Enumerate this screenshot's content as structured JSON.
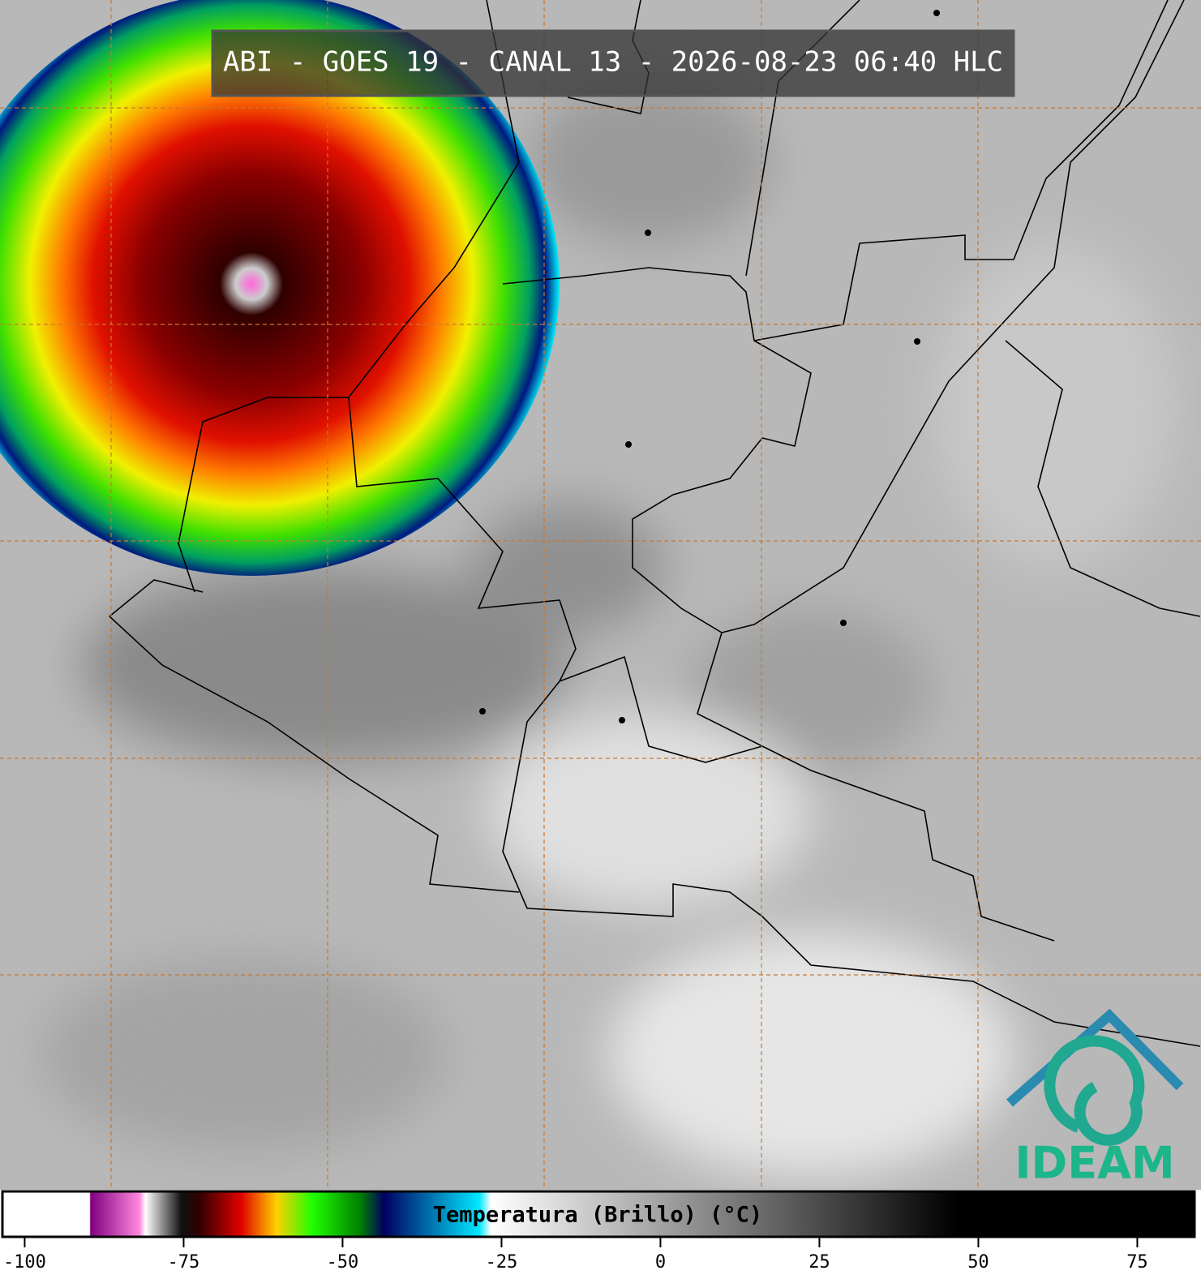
{
  "title": "ABI - GOES 19 - CANAL 13 - 2026-08-23 06:40 HLC",
  "colorbar": {
    "label": "Temperatura (Brillo) (°C)",
    "xlim": [
      -103.5,
      84
    ],
    "xticks": [
      -100,
      -75,
      -50,
      -25,
      0,
      25,
      50,
      75
    ]
  },
  "logo": "IDEAM"
}
